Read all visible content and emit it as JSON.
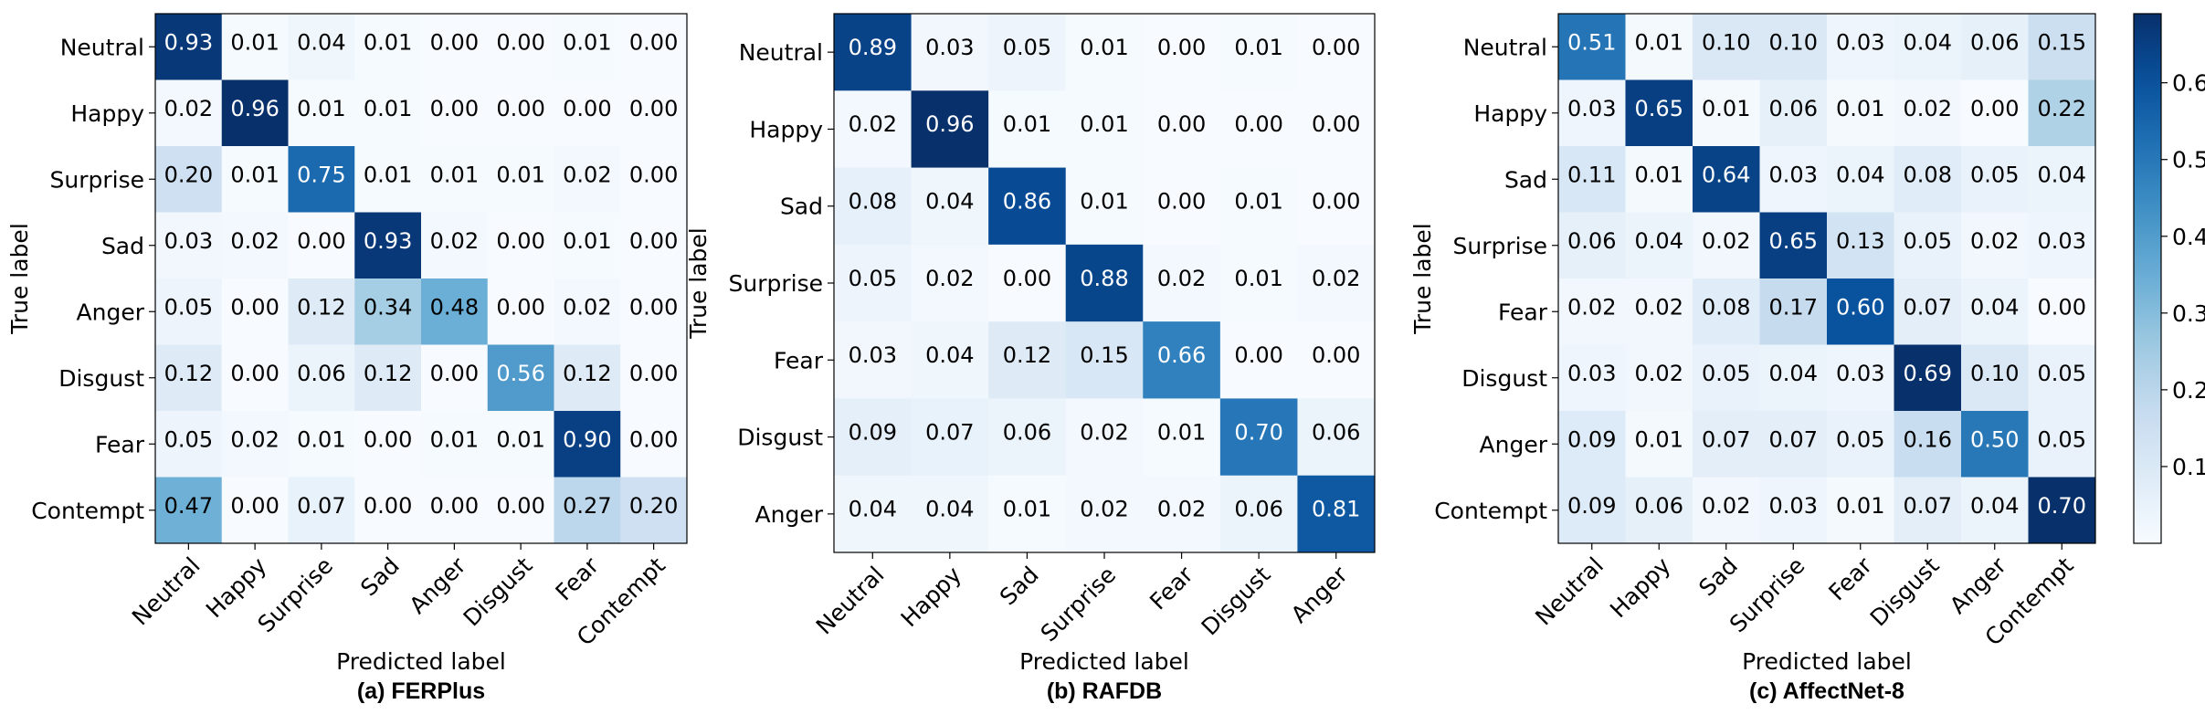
{
  "colors": {
    "scale": [
      "#f7fbff",
      "#deebf7",
      "#c6dbef",
      "#9ecae1",
      "#6baed6",
      "#4292c6",
      "#2171b5",
      "#08519c",
      "#08306b"
    ],
    "dark_text": "#000000",
    "light_text": "#ffffff"
  },
  "colorbar": {
    "min": 0.0,
    "max": 0.69,
    "ticks": [
      "0.1",
      "0.2",
      "0.3",
      "0.4",
      "0.5",
      "0.6"
    ]
  },
  "chart_data": [
    {
      "type": "heatmap",
      "caption": "(a) FERPlus",
      "xlabel": "Predicted label",
      "ylabel": "True label",
      "vmax": 0.96,
      "row_labels": [
        "Neutral",
        "Happy",
        "Surprise",
        "Sad",
        "Anger",
        "Disgust",
        "Fear",
        "Contempt"
      ],
      "col_labels": [
        "Neutral",
        "Happy",
        "Surprise",
        "Sad",
        "Anger",
        "Disgust",
        "Fear",
        "Contempt"
      ],
      "matrix": [
        [
          "0.93",
          "0.01",
          "0.04",
          "0.01",
          "0.00",
          "0.00",
          "0.01",
          "0.00"
        ],
        [
          "0.02",
          "0.96",
          "0.01",
          "0.01",
          "0.00",
          "0.00",
          "0.00",
          "0.00"
        ],
        [
          "0.20",
          "0.01",
          "0.75",
          "0.01",
          "0.01",
          "0.01",
          "0.02",
          "0.00"
        ],
        [
          "0.03",
          "0.02",
          "0.00",
          "0.93",
          "0.02",
          "0.00",
          "0.01",
          "0.00"
        ],
        [
          "0.05",
          "0.00",
          "0.12",
          "0.34",
          "0.48",
          "0.00",
          "0.02",
          "0.00"
        ],
        [
          "0.12",
          "0.00",
          "0.06",
          "0.12",
          "0.00",
          "0.56",
          "0.12",
          "0.00"
        ],
        [
          "0.05",
          "0.02",
          "0.01",
          "0.00",
          "0.01",
          "0.01",
          "0.90",
          "0.00"
        ],
        [
          "0.47",
          "0.00",
          "0.07",
          "0.00",
          "0.00",
          "0.00",
          "0.27",
          "0.20"
        ]
      ]
    },
    {
      "type": "heatmap",
      "caption": "(b) RAFDB",
      "xlabel": "Predicted label",
      "ylabel": "True label",
      "vmax": 0.96,
      "row_labels": [
        "Neutral",
        "Happy",
        "Sad",
        "Surprise",
        "Fear",
        "Disgust",
        "Anger"
      ],
      "col_labels": [
        "Neutral",
        "Happy",
        "Sad",
        "Surprise",
        "Fear",
        "Disgust",
        "Anger"
      ],
      "matrix": [
        [
          "0.89",
          "0.03",
          "0.05",
          "0.01",
          "0.00",
          "0.01",
          "0.00"
        ],
        [
          "0.02",
          "0.96",
          "0.01",
          "0.01",
          "0.00",
          "0.00",
          "0.00"
        ],
        [
          "0.08",
          "0.04",
          "0.86",
          "0.01",
          "0.00",
          "0.01",
          "0.00"
        ],
        [
          "0.05",
          "0.02",
          "0.00",
          "0.88",
          "0.02",
          "0.01",
          "0.02"
        ],
        [
          "0.03",
          "0.04",
          "0.12",
          "0.15",
          "0.66",
          "0.00",
          "0.00"
        ],
        [
          "0.09",
          "0.07",
          "0.06",
          "0.02",
          "0.01",
          "0.70",
          "0.06"
        ],
        [
          "0.04",
          "0.04",
          "0.01",
          "0.02",
          "0.02",
          "0.06",
          "0.81"
        ]
      ]
    },
    {
      "type": "heatmap",
      "caption": "(c) AffectNet-8",
      "xlabel": "Predicted label",
      "ylabel": "True label",
      "vmax": 0.69,
      "row_labels": [
        "Neutral",
        "Happy",
        "Sad",
        "Surprise",
        "Fear",
        "Disgust",
        "Anger",
        "Contempt"
      ],
      "col_labels": [
        "Neutral",
        "Happy",
        "Sad",
        "Surprise",
        "Fear",
        "Disgust",
        "Anger",
        "Contempt"
      ],
      "matrix": [
        [
          "0.51",
          "0.01",
          "0.10",
          "0.10",
          "0.03",
          "0.04",
          "0.06",
          "0.15"
        ],
        [
          "0.03",
          "0.65",
          "0.01",
          "0.06",
          "0.01",
          "0.02",
          "0.00",
          "0.22"
        ],
        [
          "0.11",
          "0.01",
          "0.64",
          "0.03",
          "0.04",
          "0.08",
          "0.05",
          "0.04"
        ],
        [
          "0.06",
          "0.04",
          "0.02",
          "0.65",
          "0.13",
          "0.05",
          "0.02",
          "0.03"
        ],
        [
          "0.02",
          "0.02",
          "0.08",
          "0.17",
          "0.60",
          "0.07",
          "0.04",
          "0.00"
        ],
        [
          "0.03",
          "0.02",
          "0.05",
          "0.04",
          "0.03",
          "0.69",
          "0.10",
          "0.05"
        ],
        [
          "0.09",
          "0.01",
          "0.07",
          "0.07",
          "0.05",
          "0.16",
          "0.50",
          "0.05"
        ],
        [
          "0.09",
          "0.06",
          "0.02",
          "0.03",
          "0.01",
          "0.07",
          "0.04",
          "0.70"
        ]
      ]
    }
  ]
}
